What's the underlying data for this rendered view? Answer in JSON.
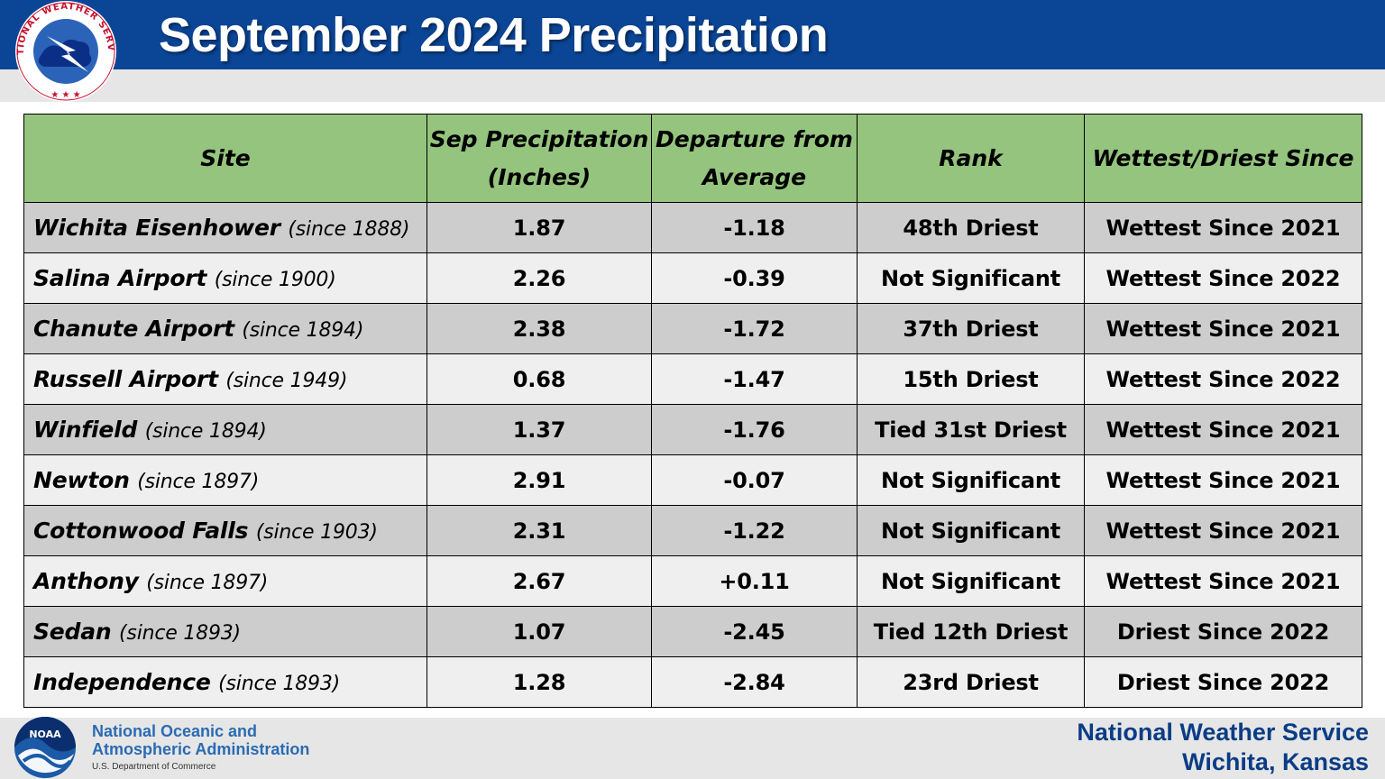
{
  "header": {
    "title": "September 2024 Precipitation",
    "logo_text": "NATIONAL WEATHER SERVICE"
  },
  "table": {
    "headers": {
      "site": "Site",
      "precip_line1": "Sep Precipitation",
      "precip_line2": "(Inches)",
      "departure_line1": "Departure from",
      "departure_line2": "Average",
      "rank": "Rank",
      "since": "Wettest/Driest Since"
    },
    "rows": [
      {
        "site": "Wichita Eisenhower",
        "record": "(since 1888)",
        "precip": "1.87",
        "departure": "-1.18",
        "rank": "48th Driest",
        "since": "Wettest Since 2021"
      },
      {
        "site": "Salina Airport",
        "record": "(since 1900)",
        "precip": "2.26",
        "departure": "-0.39",
        "rank": "Not Significant",
        "since": "Wettest Since 2022"
      },
      {
        "site": "Chanute Airport",
        "record": "(since 1894)",
        "precip": "2.38",
        "departure": "-1.72",
        "rank": "37th Driest",
        "since": "Wettest Since 2021"
      },
      {
        "site": "Russell Airport",
        "record": "(since 1949)",
        "precip": "0.68",
        "departure": "-1.47",
        "rank": "15th Driest",
        "since": "Wettest Since 2022"
      },
      {
        "site": "Winfield",
        "record": "(since 1894)",
        "precip": "1.37",
        "departure": "-1.76",
        "rank": "Tied 31st Driest",
        "since": "Wettest Since 2021"
      },
      {
        "site": "Newton",
        "record": "(since 1897)",
        "precip": "2.91",
        "departure": "-0.07",
        "rank": "Not Significant",
        "since": "Wettest Since 2021"
      },
      {
        "site": "Cottonwood Falls",
        "record": "(since 1903)",
        "precip": "2.31",
        "departure": "-1.22",
        "rank": "Not Significant",
        "since": "Wettest Since 2021"
      },
      {
        "site": "Anthony",
        "record": "(since 1897)",
        "precip": "2.67",
        "departure": "+0.11",
        "rank": "Not Significant",
        "since": "Wettest Since 2021"
      },
      {
        "site": "Sedan",
        "record": "(since 1893)",
        "precip": "1.07",
        "departure": "-2.45",
        "rank": "Tied 12th Driest",
        "since": "Driest Since 2022"
      },
      {
        "site": "Independence",
        "record": "(since 1893)",
        "precip": "1.28",
        "departure": "-2.84",
        "rank": "23rd Driest",
        "since": "Driest Since 2022"
      }
    ]
  },
  "footer": {
    "noaa_line1": "National Oceanic and",
    "noaa_line2": "Atmospheric Administration",
    "noaa_line3": "U.S. Department of Commerce",
    "noaa_logo_text": "NOAA",
    "office_name": "National Weather Service",
    "office_location": "Wichita, Kansas"
  },
  "colors": {
    "header_blue": "#0b4596",
    "header_green": "#94c47d",
    "negative_departure": "#c0651c",
    "positive_departure": "#4e8a2b"
  }
}
